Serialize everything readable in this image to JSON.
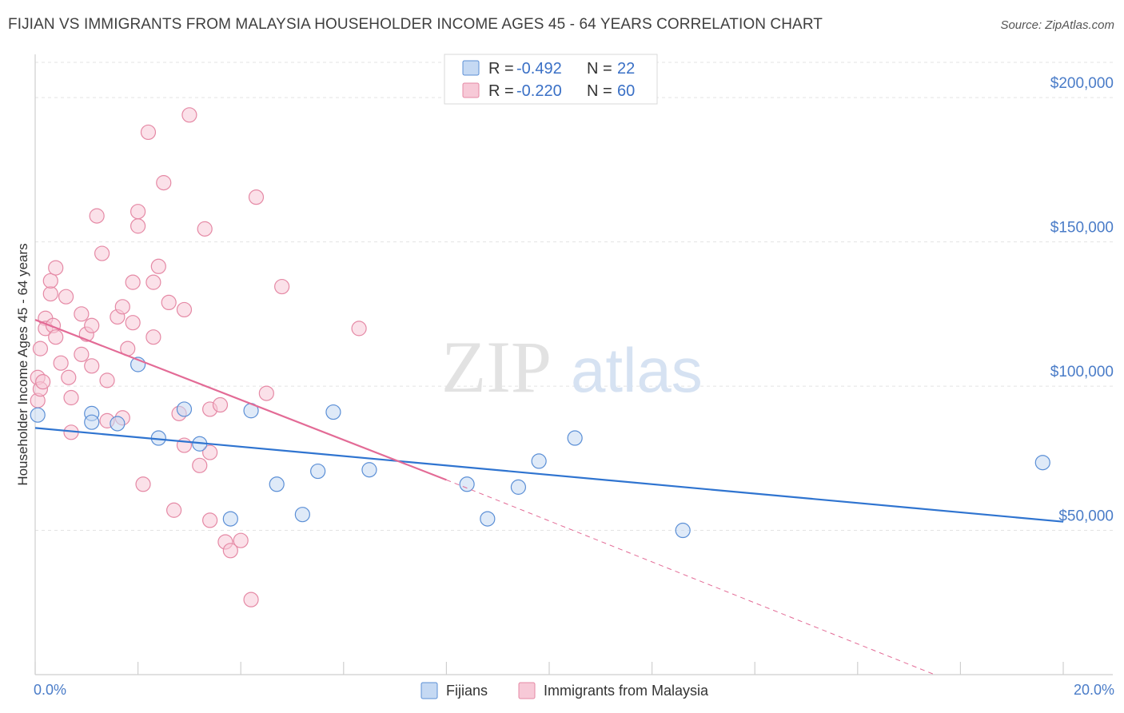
{
  "title": "FIJIAN VS IMMIGRANTS FROM MALAYSIA HOUSEHOLDER INCOME AGES 45 - 64 YEARS CORRELATION CHART",
  "source": "Source: ZipAtlas.com",
  "watermark": {
    "zip": "ZIP",
    "atlas": "atlas"
  },
  "chart_data": {
    "type": "scatter",
    "xlabel": "",
    "ylabel": "Householder Income Ages 45 - 64 years",
    "xlim": [
      0,
      20
    ],
    "ylim": [
      0,
      215000
    ],
    "x_tick_labels": [
      "0.0%",
      "20.0%"
    ],
    "y_ticks": [
      50000,
      100000,
      150000,
      200000
    ],
    "y_tick_labels": [
      "$50,000",
      "$100,000",
      "$150,000",
      "$200,000"
    ],
    "grid": true,
    "legend_position": "top-center",
    "series": [
      {
        "name": "Fijians",
        "color": "#5b8fd6",
        "fill": "#c5d9f3",
        "line_color": "#2f74d0",
        "r_label": "R = ",
        "r_value": "-0.492",
        "n_label": "N = ",
        "n_value": "22",
        "trend": {
          "x0": 0.0,
          "y0": 85500,
          "x1": 20.0,
          "y1": 53000,
          "dashed_to": null
        },
        "points": [
          [
            0.05,
            90000
          ],
          [
            1.1,
            90500
          ],
          [
            1.1,
            87500
          ],
          [
            1.6,
            87000
          ],
          [
            2.0,
            107500
          ],
          [
            2.4,
            82000
          ],
          [
            2.9,
            92000
          ],
          [
            3.2,
            80000
          ],
          [
            3.8,
            54000
          ],
          [
            4.2,
            91500
          ],
          [
            4.7,
            66000
          ],
          [
            5.2,
            55500
          ],
          [
            5.5,
            70500
          ],
          [
            5.8,
            91000
          ],
          [
            6.5,
            71000
          ],
          [
            8.4,
            66000
          ],
          [
            8.8,
            54000
          ],
          [
            9.4,
            65000
          ],
          [
            9.8,
            74000
          ],
          [
            10.5,
            82000
          ],
          [
            12.6,
            50000
          ],
          [
            19.6,
            73500
          ]
        ]
      },
      {
        "name": "Immigrants from Malaysia",
        "color": "#e589a5",
        "fill": "#f7c9d7",
        "line_color": "#e36b96",
        "r_label": "R = ",
        "r_value": "-0.220",
        "n_label": "N = ",
        "n_value": "60",
        "trend": {
          "x0": 0.0,
          "y0": 123000,
          "x1": 8.0,
          "y1": 67500,
          "dashed_to": [
            17.5,
            0
          ]
        },
        "points": [
          [
            0.05,
            103000
          ],
          [
            0.05,
            95000
          ],
          [
            0.1,
            113000
          ],
          [
            0.1,
            99000
          ],
          [
            0.15,
            101500
          ],
          [
            0.2,
            123500
          ],
          [
            0.2,
            120000
          ],
          [
            0.3,
            132000
          ],
          [
            0.3,
            136500
          ],
          [
            0.35,
            121000
          ],
          [
            0.4,
            141000
          ],
          [
            0.4,
            117000
          ],
          [
            0.5,
            108000
          ],
          [
            0.6,
            131000
          ],
          [
            0.65,
            103000
          ],
          [
            0.7,
            96000
          ],
          [
            0.7,
            84000
          ],
          [
            0.9,
            125000
          ],
          [
            0.9,
            111000
          ],
          [
            1.0,
            118000
          ],
          [
            1.1,
            107000
          ],
          [
            1.1,
            121000
          ],
          [
            1.2,
            159000
          ],
          [
            1.3,
            146000
          ],
          [
            1.4,
            102000
          ],
          [
            1.4,
            88000
          ],
          [
            1.6,
            124000
          ],
          [
            1.7,
            127500
          ],
          [
            1.8,
            113000
          ],
          [
            1.9,
            122000
          ],
          [
            1.9,
            136000
          ],
          [
            2.0,
            155500
          ],
          [
            2.1,
            66000
          ],
          [
            2.2,
            188000
          ],
          [
            2.3,
            117000
          ],
          [
            2.4,
            141500
          ],
          [
            2.5,
            170500
          ],
          [
            2.6,
            129000
          ],
          [
            2.7,
            57000
          ],
          [
            2.8,
            90500
          ],
          [
            2.9,
            126500
          ],
          [
            2.9,
            79500
          ],
          [
            3.0,
            194000
          ],
          [
            3.2,
            72500
          ],
          [
            3.3,
            154500
          ],
          [
            3.4,
            92000
          ],
          [
            3.4,
            77000
          ],
          [
            3.4,
            53500
          ],
          [
            3.6,
            93500
          ],
          [
            3.7,
            46000
          ],
          [
            3.8,
            43000
          ],
          [
            4.0,
            46500
          ],
          [
            4.2,
            26000
          ],
          [
            4.3,
            165500
          ],
          [
            4.5,
            97500
          ],
          [
            4.8,
            134500
          ],
          [
            6.3,
            120000
          ],
          [
            2.0,
            160500
          ],
          [
            2.3,
            136000
          ],
          [
            1.7,
            89000
          ]
        ]
      }
    ]
  }
}
